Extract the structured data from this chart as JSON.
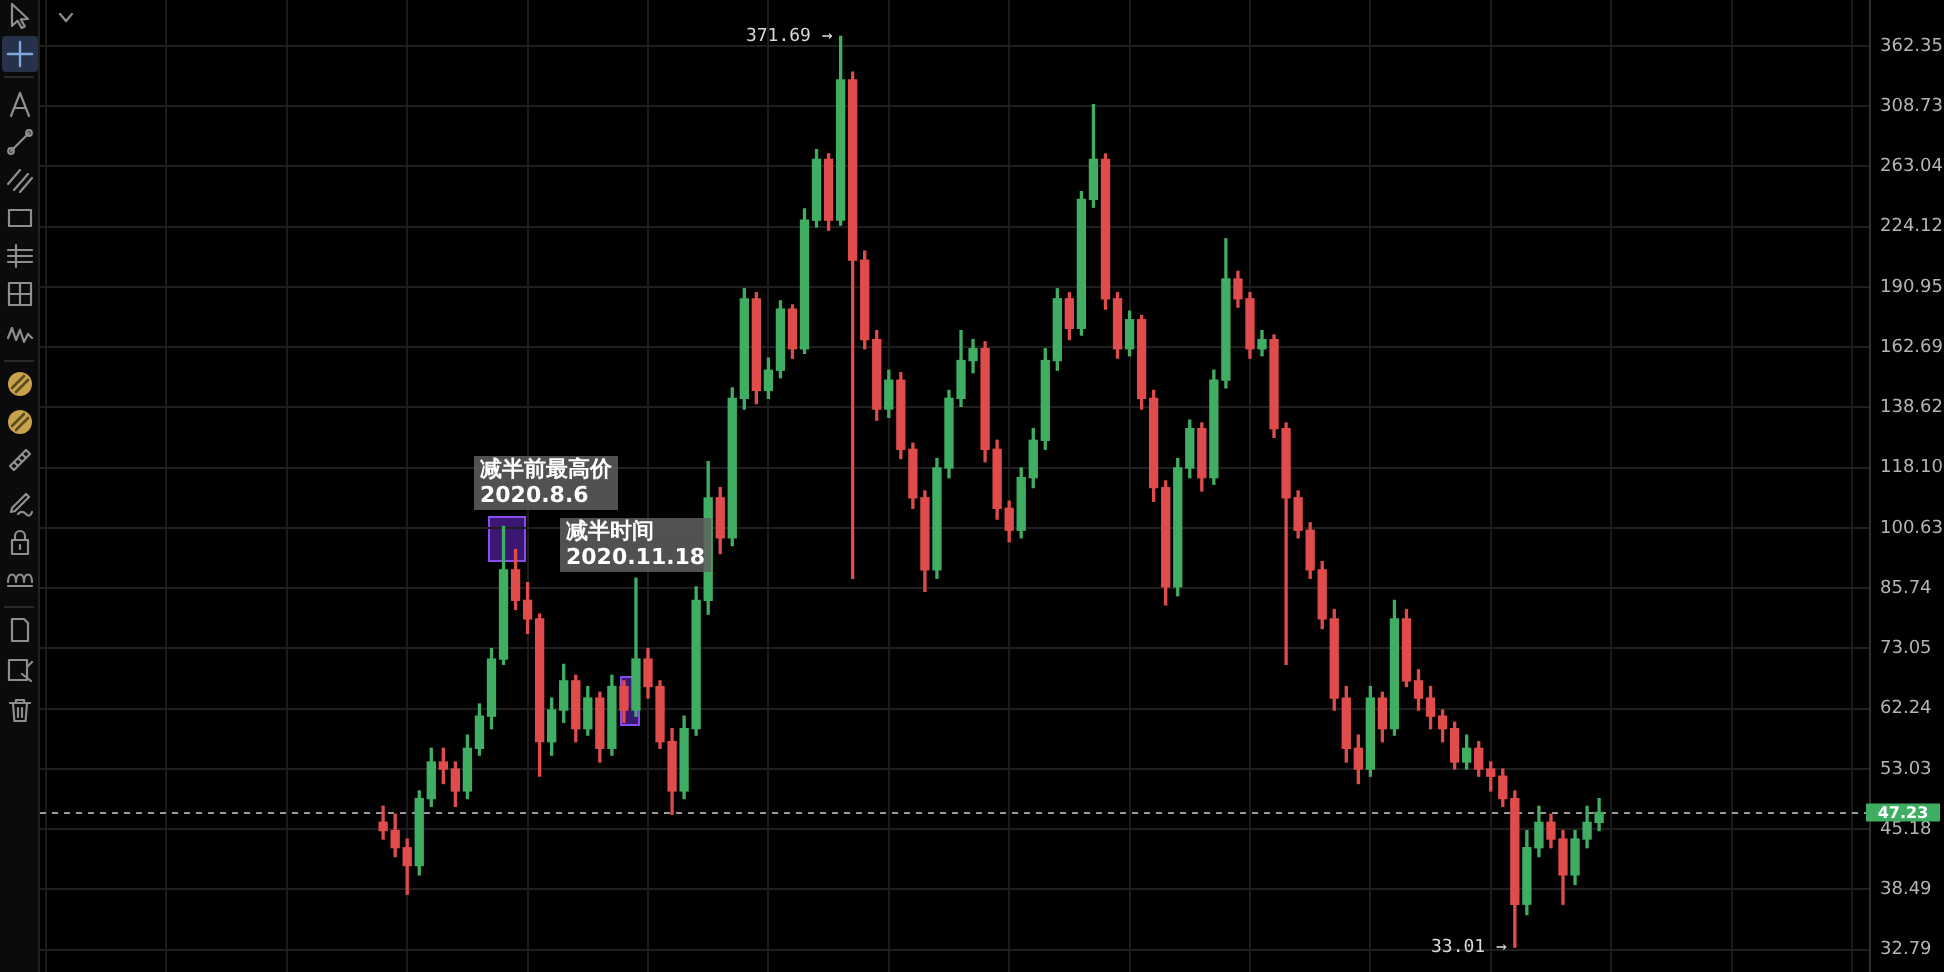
{
  "chart_data": {
    "type": "candlestick",
    "log": true,
    "grid": true,
    "tick_labels": "y",
    "categories": [
      null,
      null,
      null,
      null,
      null,
      null,
      null,
      null,
      null,
      null,
      null,
      null,
      null,
      null,
      null,
      null,
      null,
      null,
      null,
      null,
      null,
      null,
      null,
      null,
      null,
      null,
      null,
      null,
      null,
      null,
      null,
      null,
      null,
      null,
      null,
      null,
      null,
      null,
      null,
      null,
      null,
      null,
      null,
      null,
      null,
      null,
      null,
      null,
      null,
      null,
      null,
      null,
      null,
      null,
      null,
      null,
      null,
      null,
      null,
      null,
      null,
      null,
      null,
      null,
      null,
      null,
      null,
      null,
      null,
      null,
      null,
      null,
      null,
      null,
      null,
      null,
      null,
      null,
      null,
      null,
      null,
      null,
      null,
      null,
      null,
      null,
      null,
      null,
      null,
      null,
      null,
      null,
      null,
      null,
      null,
      null,
      null,
      null,
      null,
      null,
      null,
      null,
      null,
      null,
      null,
      null,
      null,
      null,
      null,
      null,
      null,
      null,
      null,
      null,
      null,
      null,
      null,
      null,
      null,
      null,
      null,
      null,
      null,
      null,
      null,
      null,
      null,
      null,
      null,
      null,
      null,
      null,
      null,
      null,
      null,
      null,
      null,
      null,
      null,
      null,
      null,
      null,
      null,
      null,
      null,
      null,
      null,
      null,
      null,
      null,
      null,
      null
    ],
    "ohlc": [
      null,
      null,
      null,
      null,
      null,
      null,
      null,
      null,
      null,
      null,
      null,
      null,
      null,
      null,
      null,
      null,
      null,
      null,
      null,
      null,
      null,
      null,
      null,
      null,
      null,
      null,
      null,
      null,
      [
        46,
        48,
        44,
        45
      ],
      [
        45,
        47,
        42,
        43
      ],
      [
        43,
        44,
        38,
        41
      ],
      [
        41,
        50,
        40,
        49
      ],
      [
        49,
        56,
        48,
        54
      ],
      [
        54,
        56,
        51,
        53
      ],
      [
        53,
        54,
        48,
        50
      ],
      [
        50,
        58,
        49,
        56
      ],
      [
        56,
        63,
        55,
        61
      ],
      [
        61,
        73,
        59,
        71
      ],
      [
        71,
        101,
        70,
        90
      ],
      [
        90,
        95,
        81,
        83
      ],
      [
        83,
        87,
        76,
        79
      ],
      [
        79,
        80,
        52,
        57
      ],
      [
        57,
        64,
        55,
        62
      ],
      [
        62,
        70,
        60,
        67
      ],
      [
        67,
        68,
        57,
        59
      ],
      [
        59,
        66,
        58,
        64
      ],
      [
        64,
        65,
        54,
        56
      ],
      [
        56,
        68,
        55,
        66
      ],
      [
        66,
        67,
        60,
        62
      ],
      [
        62,
        88,
        61,
        71
      ],
      [
        71,
        73,
        64,
        66
      ],
      [
        66,
        67,
        56,
        57
      ],
      [
        57,
        59,
        47,
        50
      ],
      [
        50,
        61,
        49,
        59
      ],
      [
        59,
        86,
        58,
        83
      ],
      [
        83,
        120,
        80,
        109
      ],
      [
        109,
        112,
        94,
        98
      ],
      [
        98,
        146,
        96,
        142
      ],
      [
        142,
        190,
        138,
        185
      ],
      [
        185,
        188,
        140,
        145
      ],
      [
        145,
        158,
        142,
        153
      ],
      [
        153,
        184,
        150,
        180
      ],
      [
        180,
        182,
        158,
        162
      ],
      [
        162,
        235,
        160,
        228
      ],
      [
        228,
        275,
        224,
        268
      ],
      [
        268,
        272,
        222,
        228
      ],
      [
        228,
        371.69,
        225,
        331
      ],
      [
        331,
        338,
        88,
        205
      ],
      [
        205,
        210,
        162,
        166
      ],
      [
        166,
        170,
        134,
        138
      ],
      [
        138,
        153,
        135,
        149
      ],
      [
        149,
        152,
        121,
        124
      ],
      [
        124,
        126,
        106,
        109
      ],
      [
        109,
        111,
        85,
        90
      ],
      [
        90,
        121,
        88,
        118
      ],
      [
        118,
        145,
        115,
        142
      ],
      [
        142,
        170,
        139,
        157
      ],
      [
        157,
        166,
        152,
        162
      ],
      [
        162,
        165,
        120,
        124
      ],
      [
        124,
        127,
        103,
        106
      ],
      [
        106,
        108,
        97,
        100
      ],
      [
        100,
        118,
        98,
        115
      ],
      [
        115,
        131,
        112,
        127
      ],
      [
        127,
        162,
        124,
        157
      ],
      [
        157,
        190,
        153,
        185
      ],
      [
        185,
        188,
        166,
        171
      ],
      [
        171,
        246,
        168,
        241
      ],
      [
        241,
        310,
        236,
        268
      ],
      [
        268,
        272,
        180,
        185
      ],
      [
        185,
        188,
        158,
        162
      ],
      [
        162,
        179,
        159,
        175
      ],
      [
        175,
        177,
        138,
        142
      ],
      [
        142,
        145,
        108,
        112
      ],
      [
        112,
        114,
        82,
        86
      ],
      [
        86,
        121,
        84,
        118
      ],
      [
        118,
        134,
        115,
        131
      ],
      [
        131,
        133,
        111,
        115
      ],
      [
        115,
        153,
        113,
        149
      ],
      [
        149,
        217,
        146,
        195
      ],
      [
        195,
        199,
        181,
        185
      ],
      [
        185,
        188,
        158,
        162
      ],
      [
        162,
        170,
        159,
        166
      ],
      [
        166,
        168,
        128,
        131
      ],
      [
        131,
        133,
        70,
        109
      ],
      [
        109,
        111,
        98,
        100
      ],
      [
        100,
        102,
        88,
        90
      ],
      [
        90,
        92,
        77,
        79
      ],
      [
        79,
        81,
        62,
        64
      ],
      [
        64,
        66,
        54,
        56
      ],
      [
        56,
        58,
        51,
        53
      ],
      [
        53,
        66,
        52,
        64
      ],
      [
        64,
        65,
        57,
        59
      ],
      [
        59,
        83,
        58,
        79
      ],
      [
        79,
        81,
        66,
        67
      ],
      [
        67,
        69,
        62,
        64
      ],
      [
        64,
        66,
        59,
        61
      ],
      [
        61,
        62,
        57,
        59
      ],
      [
        59,
        60,
        53,
        54
      ],
      [
        54,
        58,
        53,
        56
      ],
      [
        56,
        57,
        52,
        53
      ],
      [
        53,
        54,
        50,
        52
      ],
      [
        52,
        53,
        48,
        49
      ],
      [
        49,
        50,
        33.01,
        37
      ],
      [
        37,
        45,
        36,
        43
      ],
      [
        43,
        48,
        42,
        46
      ],
      [
        46,
        47,
        43,
        44
      ],
      [
        44,
        45,
        37,
        40
      ],
      [
        40,
        45,
        39,
        44
      ],
      [
        44,
        48,
        43,
        46
      ],
      [
        46,
        49,
        45,
        47.23
      ],
      null,
      null,
      null,
      null,
      null,
      null,
      null,
      null,
      null,
      null,
      null,
      null,
      null,
      null,
      null,
      null,
      null,
      null,
      null,
      null,
      null,
      null
    ],
    "colors": [
      null,
      null,
      null,
      null,
      null,
      null,
      null,
      null,
      null,
      null,
      null,
      null,
      null,
      null,
      null,
      null,
      null,
      null,
      null,
      null,
      null,
      null,
      null,
      null,
      null,
      null,
      null,
      null,
      "#e04b4b",
      "#e04b4b",
      "#e04b4b",
      "#3fae62",
      "#3fae62",
      "#e04b4b",
      "#e04b4b",
      "#3fae62",
      "#3fae62",
      "#3fae62",
      "#3fae62",
      "#e04b4b",
      "#e04b4b",
      "#e04b4b",
      "#3fae62",
      "#3fae62",
      "#e04b4b",
      "#3fae62",
      "#e04b4b",
      "#3fae62",
      "#e04b4b",
      "#3fae62",
      "#e04b4b",
      "#e04b4b",
      "#e04b4b",
      "#3fae62",
      "#3fae62",
      "#3fae62",
      "#e04b4b",
      "#3fae62",
      "#3fae62",
      "#e04b4b",
      "#3fae62",
      "#3fae62",
      "#e04b4b",
      "#3fae62",
      "#3fae62",
      "#e04b4b",
      "#3fae62",
      "#e04b4b",
      "#e04b4b",
      "#e04b4b",
      "#3fae62",
      "#e04b4b",
      "#e04b4b",
      "#e04b4b",
      "#3fae62",
      "#3fae62",
      "#3fae62",
      "#3fae62",
      "#e04b4b",
      "#e04b4b",
      "#e04b4b",
      "#3fae62",
      "#3fae62",
      "#3fae62",
      "#3fae62",
      "#e04b4b",
      "#3fae62",
      "#3fae62",
      "#e04b4b",
      "#e04b4b",
      "#3fae62",
      "#e04b4b",
      "#e04b4b",
      "#e04b4b",
      "#3fae62",
      "#3fae62",
      "#e04b4b",
      "#3fae62",
      "#3fae62",
      "#e04b4b",
      "#e04b4b",
      "#3fae62",
      "#e04b4b",
      "#e04b4b",
      "#e04b4b",
      "#e04b4b",
      "#e04b4b",
      "#e04b4b",
      "#e04b4b",
      "#e04b4b",
      "#3fae62",
      "#e04b4b",
      "#3fae62",
      "#e04b4b",
      "#e04b4b",
      "#e04b4b",
      "#e04b4b",
      "#e04b4b",
      "#3fae62",
      "#e04b4b",
      "#e04b4b",
      "#e04b4b",
      "#e04b4b",
      "#3fae62",
      "#3fae62",
      "#e04b4b",
      "#e04b4b",
      "#3fae62",
      "#3fae62",
      "#3fae62",
      null,
      null,
      null,
      null,
      null,
      null,
      null,
      null,
      null,
      null,
      null,
      null,
      null,
      null,
      null,
      null,
      null,
      null,
      null,
      null,
      null,
      null
    ],
    "ylim": [
      30.9,
      409.4
    ],
    "yticks": [
      32.79,
      38.49,
      45.18,
      53.03,
      62.24,
      73.05,
      85.74,
      100.63,
      {
        "value": 118.1,
        "label": "118.10"
      },
      138.62,
      162.69,
      190.95,
      224.12,
      263.04,
      308.73,
      362.35
    ],
    "ref_lines": [
      {
        "axis": "y",
        "value": 47.23,
        "label": "47.23",
        "color": "#9a9a9a",
        "line_style": "dashed"
      }
    ],
    "annotations": [
      "371.69 →",
      "33.01 →",
      "减半前最高价\n2020.8.6",
      "减半时间\n2020.11.18"
    ]
  }
}
